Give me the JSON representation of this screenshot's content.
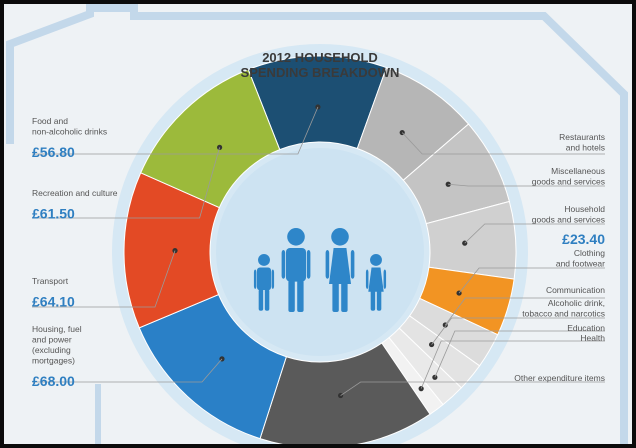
{
  "title_line1": "2012 HOUSEHOLD",
  "title_line2": "SPENDING BREAKDOWN",
  "colors": {
    "background": "#eef2f5",
    "house_outline": "#c3d8ea",
    "halo": "#d6e8f4",
    "inner_circle": "#cde3f2",
    "family_icon": "#2e86c9",
    "value_text": "#2f7fc1",
    "label_text": "#555555",
    "title_text": "#3a3a3a"
  },
  "chart_data": {
    "type": "pie",
    "style": "donut",
    "title": "2012 HOUSEHOLD SPENDING BREAKDOWN",
    "unit": "£",
    "slices": [
      {
        "key": "food",
        "label_lines": [
          "Food and",
          "non-alcoholic drinks"
        ],
        "value": 56.8,
        "value_label": "£56.80",
        "color": "#1c4f73",
        "side": "left"
      },
      {
        "key": "restaurants",
        "label_lines": [
          "Restaurants",
          "and hotels"
        ],
        "value": 40.5,
        "value_label": "",
        "color": "#b6b6b6",
        "side": "right"
      },
      {
        "key": "misc",
        "label_lines": [
          "Miscellaneous",
          "goods and services"
        ],
        "value": 35.5,
        "value_label": "",
        "color": "#c4c4c4",
        "side": "right"
      },
      {
        "key": "household_goods",
        "label_lines": [
          "Household",
          "goods and services"
        ],
        "value": 31.5,
        "value_label": "",
        "color": "#d0d0d0",
        "side": "right"
      },
      {
        "key": "clothing",
        "label_lines": [
          "Clothing",
          "and footwear"
        ],
        "value": 23.4,
        "value_label": "£23.40",
        "color": "#f29423",
        "side": "right"
      },
      {
        "key": "communication",
        "label_lines": [
          "Communication"
        ],
        "value": 14.5,
        "value_label": "",
        "color": "#dcdcdc",
        "side": "right"
      },
      {
        "key": "alcohol",
        "label_lines": [
          "Alcoholic drink,",
          "tobacco and narcotics"
        ],
        "value": 11.5,
        "value_label": "",
        "color": "#e3e3e3",
        "side": "right"
      },
      {
        "key": "education",
        "label_lines": [
          "Education"
        ],
        "value": 10.0,
        "value_label": "",
        "color": "#e9e9e9",
        "side": "right"
      },
      {
        "key": "health",
        "label_lines": [
          "Health"
        ],
        "value": 6.5,
        "value_label": "",
        "color": "#f2f2f2",
        "side": "right"
      },
      {
        "key": "other",
        "label_lines": [
          "Other expenditure items"
        ],
        "value": 71.5,
        "value_label": "",
        "color": "#5a5a5a",
        "side": "right"
      },
      {
        "key": "housing",
        "label_lines": [
          "Housing, fuel",
          "and power",
          "(excluding",
          "mortgages)"
        ],
        "value": 68.0,
        "value_label": "£68.00",
        "color": "#2a80c7",
        "side": "left"
      },
      {
        "key": "transport",
        "label_lines": [
          "Transport"
        ],
        "value": 64.1,
        "value_label": "£64.10",
        "color": "#e34a25",
        "side": "left"
      },
      {
        "key": "recreation",
        "label_lines": [
          "Recreation and culture"
        ],
        "value": 61.5,
        "value_label": "£61.50",
        "color": "#9cba3b",
        "side": "left"
      }
    ]
  }
}
